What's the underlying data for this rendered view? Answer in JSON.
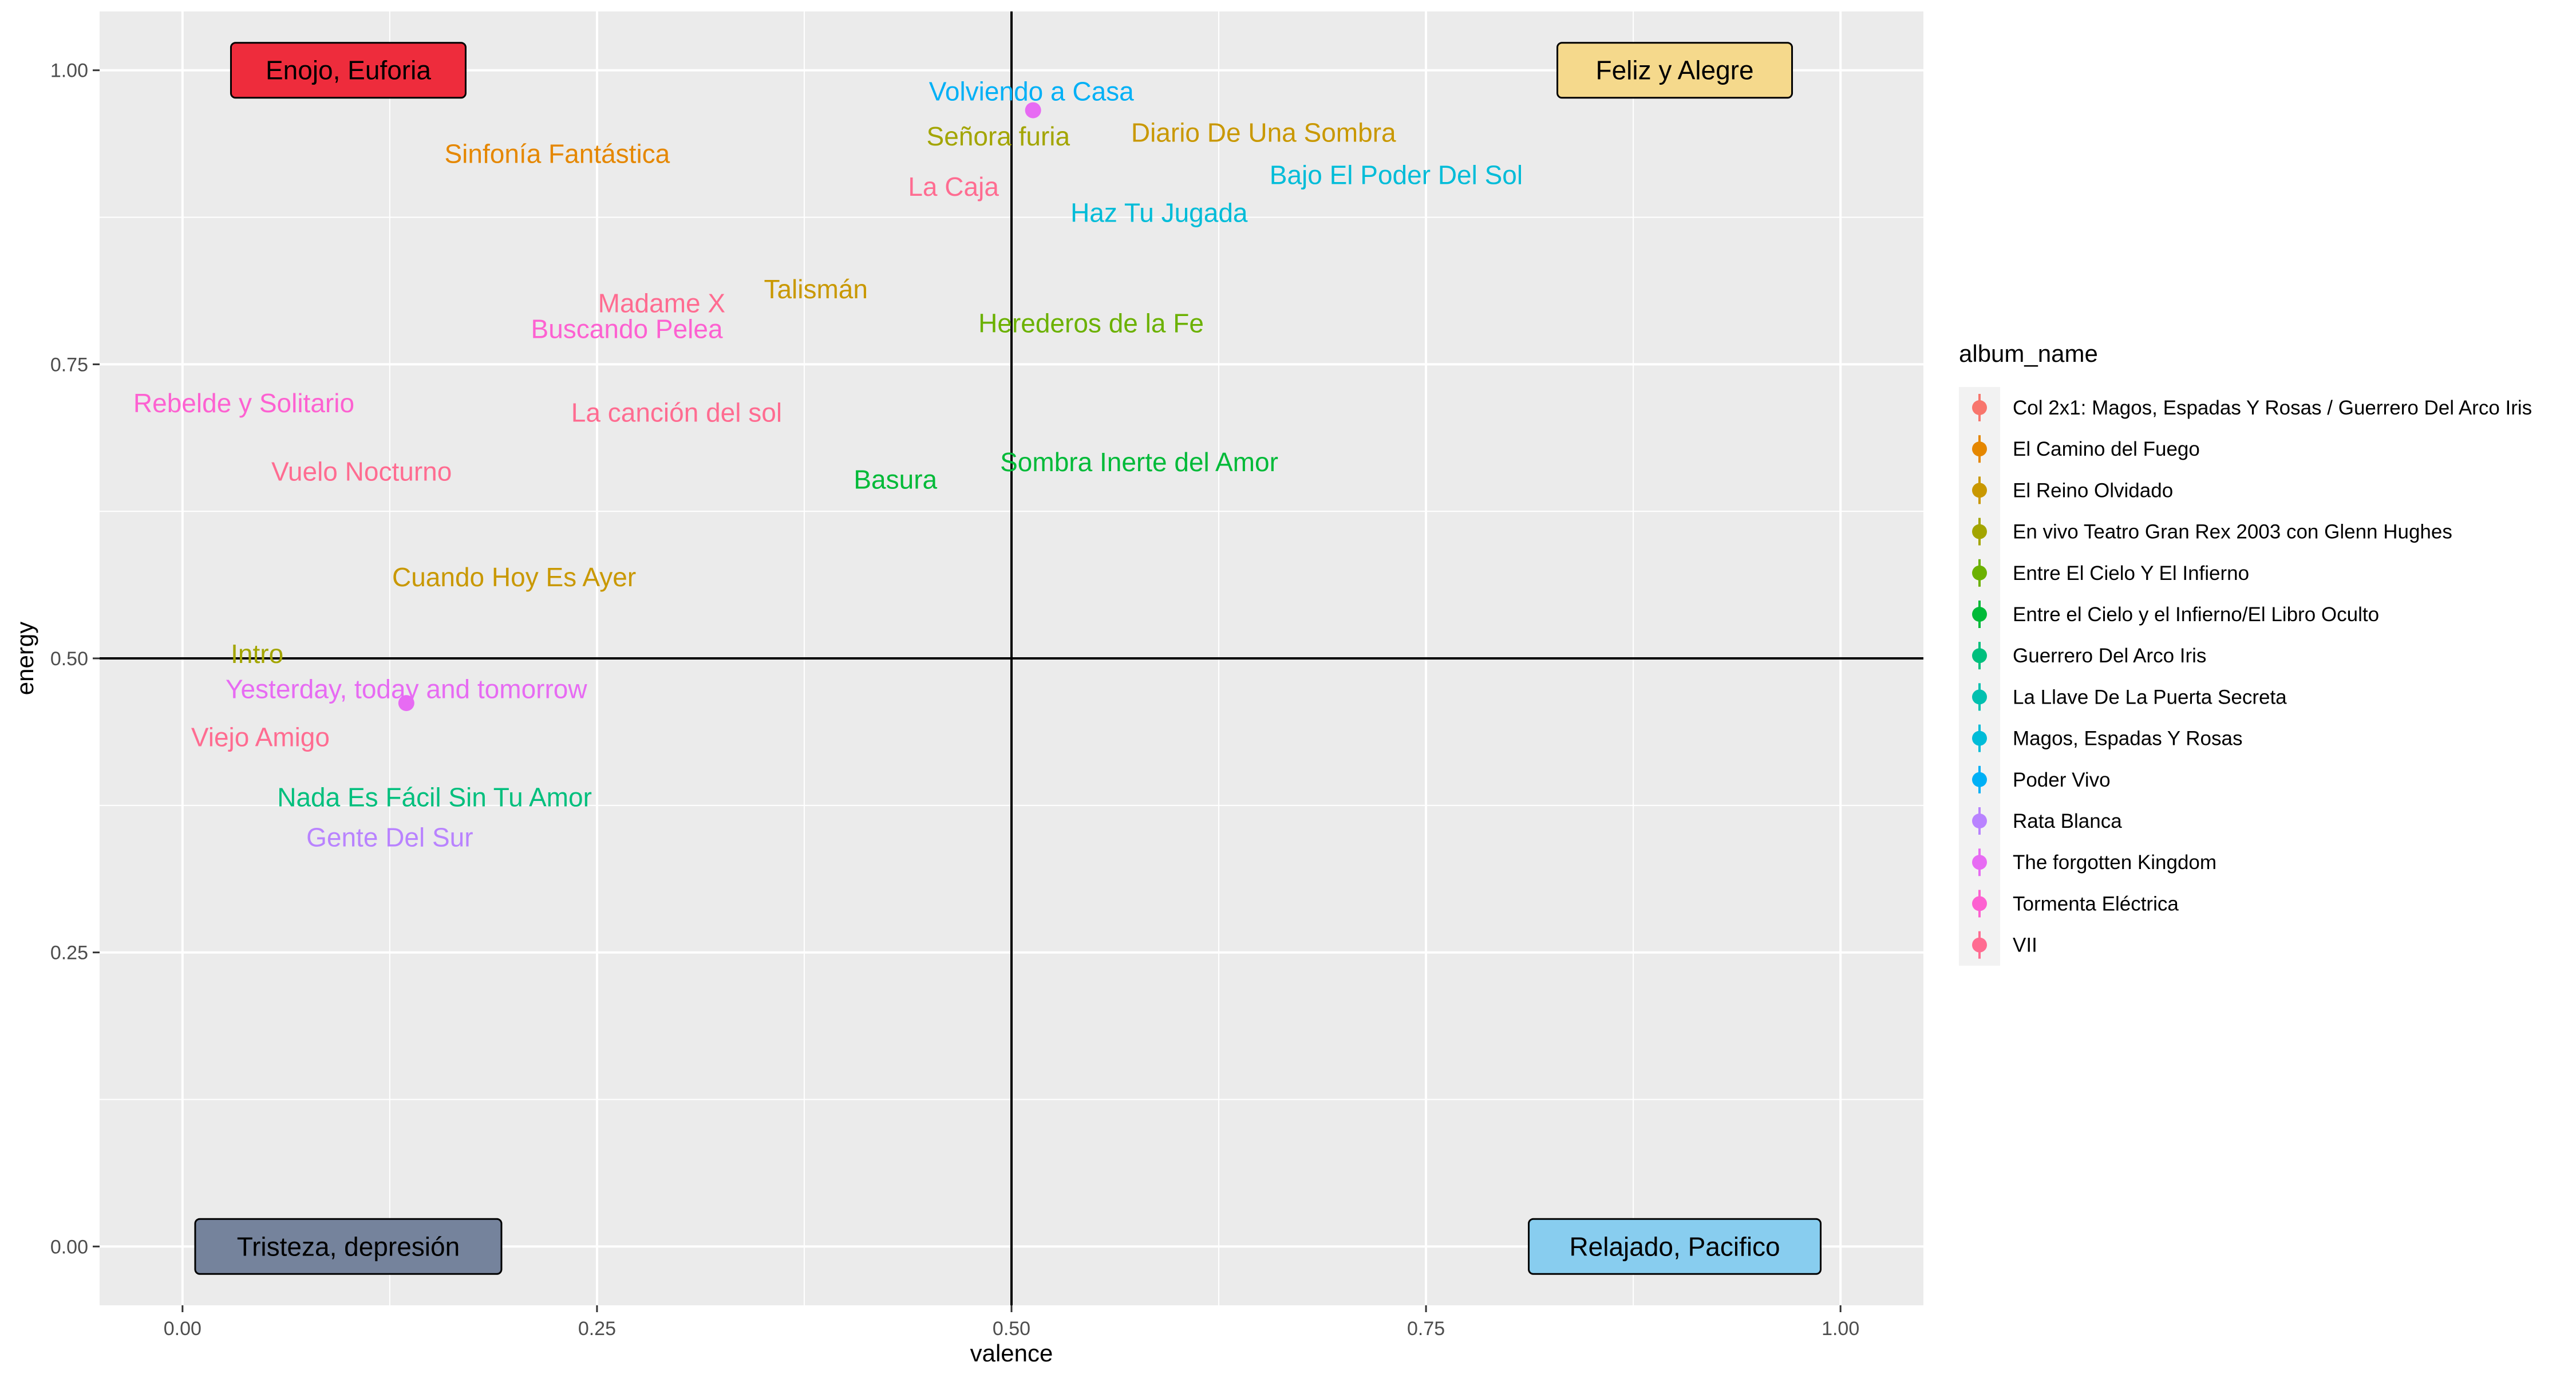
{
  "chart_data": {
    "type": "scatter",
    "xlabel": "valence",
    "ylabel": "energy",
    "xlim": [
      -0.05,
      1.05
    ],
    "ylim": [
      -0.05,
      1.05
    ],
    "x_ticks": [
      0.0,
      0.25,
      0.5,
      0.75,
      1.0
    ],
    "x_tick_labels": [
      "0.00",
      "0.25",
      "0.50",
      "0.75",
      "1.00"
    ],
    "y_ticks": [
      0.0,
      0.25,
      0.5,
      0.75,
      1.0
    ],
    "y_tick_labels": [
      "0.00",
      "0.25",
      "0.50",
      "0.75",
      "1.00"
    ],
    "reference_lines": {
      "x": 0.5,
      "y": 0.5
    },
    "grid": true,
    "legend": {
      "title": "album_name",
      "position": "right",
      "entries": [
        {
          "name": "Col 2x1: Magos, Espadas Y Rosas / Guerrero Del Arco Iris",
          "color": "#F8766D"
        },
        {
          "name": "El Camino del Fuego",
          "color": "#E58700"
        },
        {
          "name": "El Reino Olvidado",
          "color": "#C99800"
        },
        {
          "name": "En vivo Teatro Gran Rex 2003 con Glenn Hughes",
          "color": "#A3A500"
        },
        {
          "name": "Entre El Cielo Y El Infierno",
          "color": "#6BB100"
        },
        {
          "name": "Entre el Cielo y el Infierno/El Libro Oculto",
          "color": "#00BA38"
        },
        {
          "name": "Guerrero Del Arco Iris",
          "color": "#00BF7D"
        },
        {
          "name": "La Llave De La Puerta Secreta",
          "color": "#00C0AF"
        },
        {
          "name": "Magos, Espadas Y Rosas",
          "color": "#00BCD8"
        },
        {
          "name": "Poder Vivo",
          "color": "#00B0F6"
        },
        {
          "name": "Rata Blanca",
          "color": "#B983FF"
        },
        {
          "name": "The forgotten Kingdom",
          "color": "#E76BF3"
        },
        {
          "name": "Tormenta Eléctrica",
          "color": "#FD61D1"
        },
        {
          "name": "VII",
          "color": "#FF6C91"
        }
      ]
    },
    "points": [
      {
        "x": 0.513,
        "y": 0.966,
        "color": "#E76BF3"
      },
      {
        "x": 0.135,
        "y": 0.462,
        "color": "#E76BF3"
      }
    ],
    "labels": [
      {
        "text": "Volviendo a Casa",
        "x": 0.512,
        "y": 0.982,
        "color": "#00B0F6"
      },
      {
        "text": "Señora furia",
        "x": 0.492,
        "y": 0.944,
        "color": "#A3A500"
      },
      {
        "text": "Diario De Una Sombra",
        "x": 0.652,
        "y": 0.947,
        "color": "#C99800"
      },
      {
        "text": "Sinfonía Fantástica",
        "x": 0.226,
        "y": 0.929,
        "color": "#E58700"
      },
      {
        "text": "Bajo El Poder Del Sol",
        "x": 0.732,
        "y": 0.911,
        "color": "#00BCD8"
      },
      {
        "text": "La Caja",
        "x": 0.465,
        "y": 0.901,
        "color": "#FF6C91"
      },
      {
        "text": "Haz Tu Jugada",
        "x": 0.589,
        "y": 0.879,
        "color": "#00BCD8"
      },
      {
        "text": "Talismán",
        "x": 0.382,
        "y": 0.814,
        "color": "#C99800"
      },
      {
        "text": "Madame X",
        "x": 0.289,
        "y": 0.802,
        "color": "#FF6C91"
      },
      {
        "text": "Buscando Pelea",
        "x": 0.268,
        "y": 0.78,
        "color": "#FD61D1"
      },
      {
        "text": "Herederos de la Fe",
        "x": 0.548,
        "y": 0.785,
        "color": "#6BB100"
      },
      {
        "text": "Rebelde y Solitario",
        "x": 0.037,
        "y": 0.717,
        "color": "#FD61D1"
      },
      {
        "text": "La canción del sol",
        "x": 0.298,
        "y": 0.709,
        "color": "#FF6C91"
      },
      {
        "text": "Sombra Inerte del Amor",
        "x": 0.577,
        "y": 0.667,
        "color": "#00BA38"
      },
      {
        "text": "Vuelo Nocturno",
        "x": 0.108,
        "y": 0.659,
        "color": "#FF6C91"
      },
      {
        "text": "Basura",
        "x": 0.43,
        "y": 0.652,
        "color": "#00BA38"
      },
      {
        "text": "Cuando Hoy Es Ayer",
        "x": 0.2,
        "y": 0.569,
        "color": "#C99800"
      },
      {
        "text": "Intro",
        "x": 0.045,
        "y": 0.504,
        "color": "#A3A500"
      },
      {
        "text": "Yesterday, today and tomorrow",
        "x": 0.135,
        "y": 0.474,
        "color": "#E76BF3"
      },
      {
        "text": "Viejo Amigo",
        "x": 0.047,
        "y": 0.433,
        "color": "#FF6C91"
      },
      {
        "text": "Nada Es Fácil Sin Tu Amor",
        "x": 0.152,
        "y": 0.382,
        "color": "#00BF7D"
      },
      {
        "text": "Gente Del Sur",
        "x": 0.125,
        "y": 0.348,
        "color": "#B983FF"
      }
    ],
    "quadrant_labels": [
      {
        "text": "Enojo, Euforia",
        "x": 0.1,
        "y": 1.0,
        "fill": "#EE2C3C"
      },
      {
        "text": "Feliz y Alegre",
        "x": 0.9,
        "y": 1.0,
        "fill": "#F5D98C"
      },
      {
        "text": "Tristeza, depresión",
        "x": 0.1,
        "y": 0.0,
        "fill": "#75839C"
      },
      {
        "text": "Relajado, Pacifico",
        "x": 0.9,
        "y": 0.0,
        "fill": "#88CDEF"
      }
    ]
  }
}
